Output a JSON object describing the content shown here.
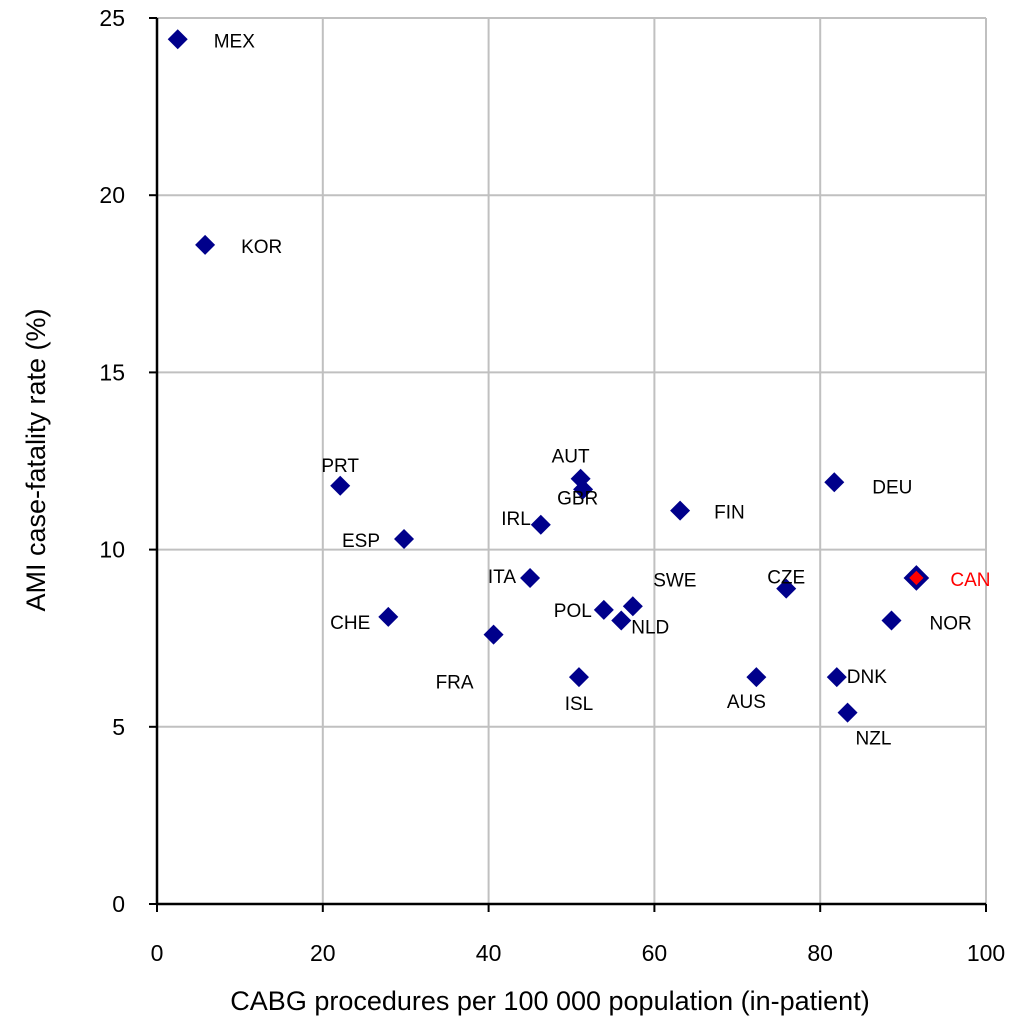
{
  "chart_data": {
    "type": "scatter",
    "title": "",
    "xlabel": "CABG procedures per 100 000 population (in-patient)",
    "ylabel": "AMI case-fatality rate (%)",
    "xlim": [
      0,
      100
    ],
    "ylim": [
      0,
      25
    ],
    "xticks": [
      "0",
      "20",
      "40",
      "60",
      "80",
      "100"
    ],
    "yticks": [
      "0",
      "5",
      "10",
      "15",
      "20",
      "25"
    ],
    "grid": true,
    "default_color": "#00008B",
    "highlight_color": "#FF0000",
    "points": [
      {
        "label": "MEX",
        "x": 2.5,
        "y": 24.4
      },
      {
        "label": "KOR",
        "x": 5.8,
        "y": 18.6
      },
      {
        "label": "PRT",
        "x": 22.1,
        "y": 11.8
      },
      {
        "label": "ESP",
        "x": 29.8,
        "y": 10.3
      },
      {
        "label": "CHE",
        "x": 27.9,
        "y": 8.1
      },
      {
        "label": "FRA",
        "x": 40.6,
        "y": 7.6
      },
      {
        "label": "ITA",
        "x": 45.0,
        "y": 9.2
      },
      {
        "label": "IRL",
        "x": 46.3,
        "y": 10.7
      },
      {
        "label": "AUT",
        "x": 51.1,
        "y": 12.0
      },
      {
        "label": "GBR",
        "x": 51.4,
        "y": 11.7
      },
      {
        "label": "ISL",
        "x": 50.9,
        "y": 6.4
      },
      {
        "label": "POL",
        "x": 53.9,
        "y": 8.3
      },
      {
        "label": "NLD",
        "x": 56.0,
        "y": 8.0
      },
      {
        "label": "SWE",
        "x": 57.4,
        "y": 8.4
      },
      {
        "label": "FIN",
        "x": 63.1,
        "y": 11.1
      },
      {
        "label": "AUS",
        "x": 72.3,
        "y": 6.4
      },
      {
        "label": "CZE",
        "x": 75.9,
        "y": 8.9
      },
      {
        "label": "DEU",
        "x": 81.7,
        "y": 11.9
      },
      {
        "label": "DNK",
        "x": 82.0,
        "y": 6.4
      },
      {
        "label": "NZL",
        "x": 83.3,
        "y": 5.4
      },
      {
        "label": "NOR",
        "x": 88.6,
        "y": 8.0
      },
      {
        "label": "CAN",
        "x": 91.6,
        "y": 9.2,
        "highlight": true
      }
    ]
  }
}
